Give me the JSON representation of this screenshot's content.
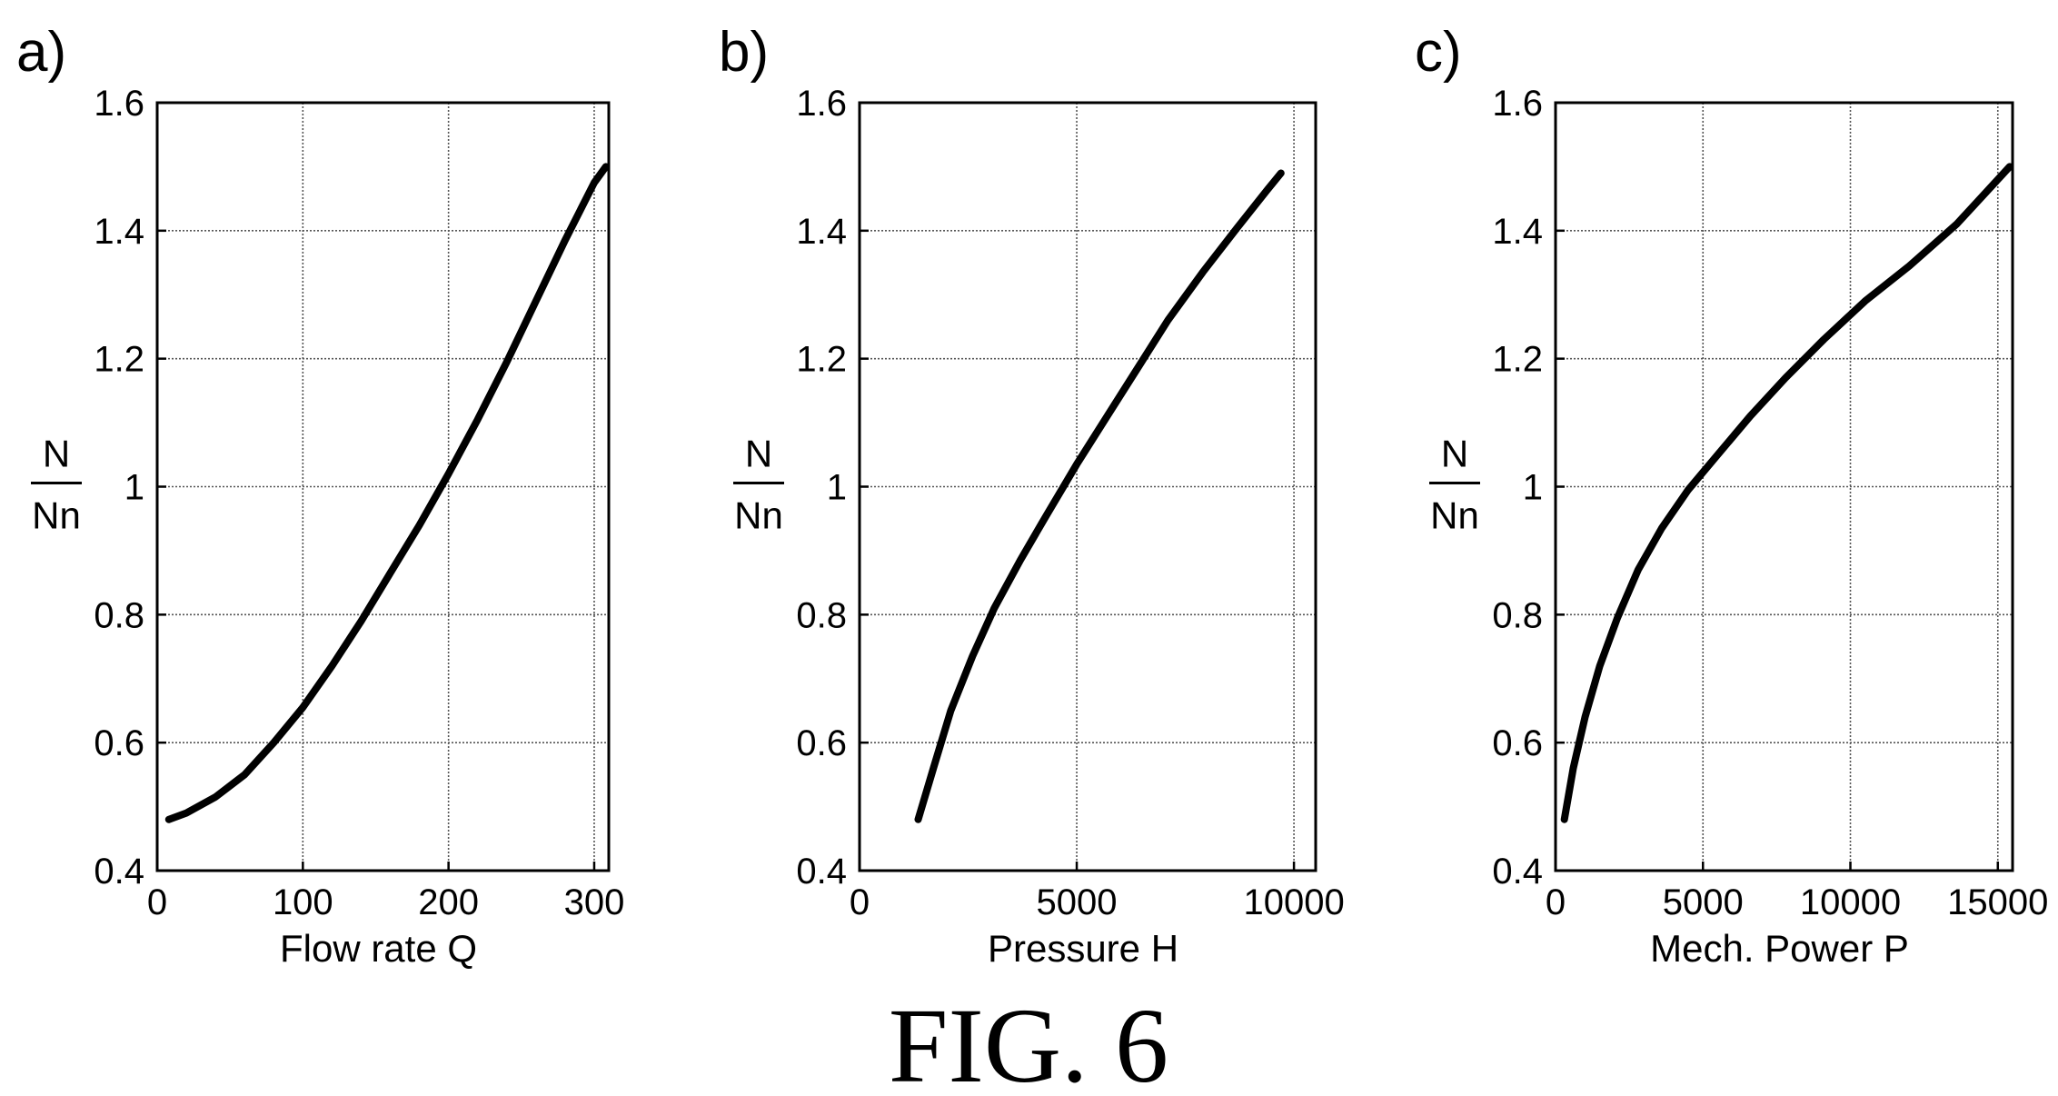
{
  "figure_caption": "FIG. 6",
  "chart_data": [
    {
      "type": "line",
      "panel_label": "a)",
      "xlabel": "Flow rate Q",
      "ylabel_num": "N",
      "ylabel_den": "Nn",
      "xlim": [
        0,
        310
      ],
      "ylim": [
        0.4,
        1.6
      ],
      "xticks": [
        0,
        100,
        200,
        300
      ],
      "xtick_labels": [
        "0",
        "100",
        "200",
        "300"
      ],
      "yticks": [
        0.4,
        0.6,
        0.8,
        1.0,
        1.2,
        1.4,
        1.6
      ],
      "ytick_labels": [
        "0.4",
        "0.6",
        "0.8",
        "1",
        "1.2",
        "1.4",
        "1.6"
      ],
      "grid": true,
      "series": [
        {
          "x": [
            8,
            20,
            40,
            60,
            80,
            100,
            120,
            140,
            160,
            180,
            200,
            220,
            240,
            260,
            280,
            300,
            308
          ],
          "y": [
            0.48,
            0.49,
            0.515,
            0.55,
            0.6,
            0.655,
            0.72,
            0.79,
            0.865,
            0.94,
            1.02,
            1.105,
            1.195,
            1.29,
            1.385,
            1.475,
            1.5
          ]
        }
      ]
    },
    {
      "type": "line",
      "panel_label": "b)",
      "xlabel": "Pressure H",
      "ylabel_num": "N",
      "ylabel_den": "Nn",
      "xlim": [
        0,
        10500
      ],
      "ylim": [
        0.4,
        1.6
      ],
      "xticks": [
        0,
        5000,
        10000
      ],
      "xtick_labels": [
        "0",
        "5000",
        "10000"
      ],
      "yticks": [
        0.4,
        0.6,
        0.8,
        1.0,
        1.2,
        1.4,
        1.6
      ],
      "ytick_labels": [
        "0.4",
        "0.6",
        "0.8",
        "1",
        "1.2",
        "1.4",
        "1.6"
      ],
      "grid": true,
      "series": [
        {
          "x": [
            1350,
            1700,
            2100,
            2600,
            3100,
            3700,
            4300,
            5000,
            5700,
            6400,
            7100,
            7900,
            8700,
            9400,
            9700
          ],
          "y": [
            0.48,
            0.56,
            0.65,
            0.735,
            0.81,
            0.885,
            0.955,
            1.035,
            1.11,
            1.185,
            1.26,
            1.335,
            1.405,
            1.465,
            1.49
          ]
        }
      ]
    },
    {
      "type": "line",
      "panel_label": "c)",
      "xlabel": "Mech. Power P",
      "ylabel_num": "N",
      "ylabel_den": "Nn",
      "xlim": [
        0,
        15500
      ],
      "ylim": [
        0.4,
        1.6
      ],
      "xticks": [
        0,
        5000,
        10000,
        15000
      ],
      "xtick_labels": [
        "0",
        "5000",
        "10000",
        "15000"
      ],
      "yticks": [
        0.4,
        0.6,
        0.8,
        1.0,
        1.2,
        1.4,
        1.6
      ],
      "ytick_labels": [
        "0.4",
        "0.6",
        "0.8",
        "1",
        "1.2",
        "1.4",
        "1.6"
      ],
      "grid": true,
      "series": [
        {
          "x": [
            300,
            600,
            1000,
            1500,
            2100,
            2800,
            3600,
            4500,
            5500,
            6600,
            7800,
            9100,
            10500,
            12000,
            13600,
            15400
          ],
          "y": [
            0.48,
            0.56,
            0.64,
            0.72,
            0.795,
            0.87,
            0.935,
            0.995,
            1.05,
            1.11,
            1.17,
            1.23,
            1.29,
            1.345,
            1.41,
            1.5
          ]
        }
      ]
    }
  ]
}
